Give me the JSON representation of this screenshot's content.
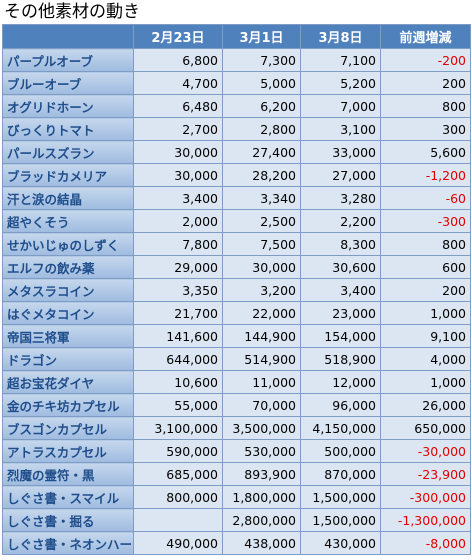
{
  "title": "その他素材の動き",
  "table": {
    "columns": [
      "2月23日",
      "3月1日",
      "3月8日",
      "前週増減"
    ],
    "rows": [
      [
        "パープルオーブ",
        "6,800",
        "7,300",
        "7,100",
        "-200"
      ],
      [
        "ブルーオーブ",
        "4,700",
        "5,000",
        "5,200",
        "200"
      ],
      [
        "オグリドホーン",
        "6,480",
        "6,200",
        "7,000",
        "800"
      ],
      [
        "びっくりトマト",
        "2,700",
        "2,800",
        "3,100",
        "300"
      ],
      [
        "パールスズラン",
        "30,000",
        "27,400",
        "33,000",
        "5,600"
      ],
      [
        "ブラッドカメリア",
        "30,000",
        "28,200",
        "27,000",
        "-1,200"
      ],
      [
        "汗と涙の結晶",
        "3,400",
        "3,340",
        "3,280",
        "-60"
      ],
      [
        "超やくそう",
        "2,000",
        "2,500",
        "2,200",
        "-300"
      ],
      [
        "せかいじゅのしずく",
        "7,800",
        "7,500",
        "8,300",
        "800"
      ],
      [
        "エルフの飲み薬",
        "29,000",
        "30,000",
        "30,600",
        "600"
      ],
      [
        "メタスラコイン",
        "3,350",
        "3,200",
        "3,400",
        "200"
      ],
      [
        "はぐメタコイン",
        "21,700",
        "22,000",
        "23,000",
        "1,000"
      ],
      [
        "帝国三将軍",
        "141,600",
        "144,900",
        "154,000",
        "9,100"
      ],
      [
        "ドラゴン",
        "644,000",
        "514,900",
        "518,900",
        "4,000"
      ],
      [
        "超お宝花ダイヤ",
        "10,600",
        "11,000",
        "12,000",
        "1,000"
      ],
      [
        "金のチキ坊カプセル",
        "55,000",
        "70,000",
        "96,000",
        "26,000"
      ],
      [
        "ブスゴンカプセル",
        "3,100,000",
        "3,500,000",
        "4,150,000",
        "650,000"
      ],
      [
        "アトラスカプセル",
        "590,000",
        "530,000",
        "500,000",
        "-30,000"
      ],
      [
        "烈魔の霊符・黒",
        "685,000",
        "893,900",
        "870,000",
        "-23,900"
      ],
      [
        "しぐさ書・スマイル",
        "800,000",
        "1,800,000",
        "1,500,000",
        "-300,000"
      ],
      [
        "しぐさ書・掘る",
        null,
        "2,800,000",
        "1,500,000",
        "-1,300,000"
      ],
      [
        "しぐさ書・ネオンハート",
        "490,000",
        "438,000",
        "430,000",
        "-8,000"
      ]
    ]
  }
}
